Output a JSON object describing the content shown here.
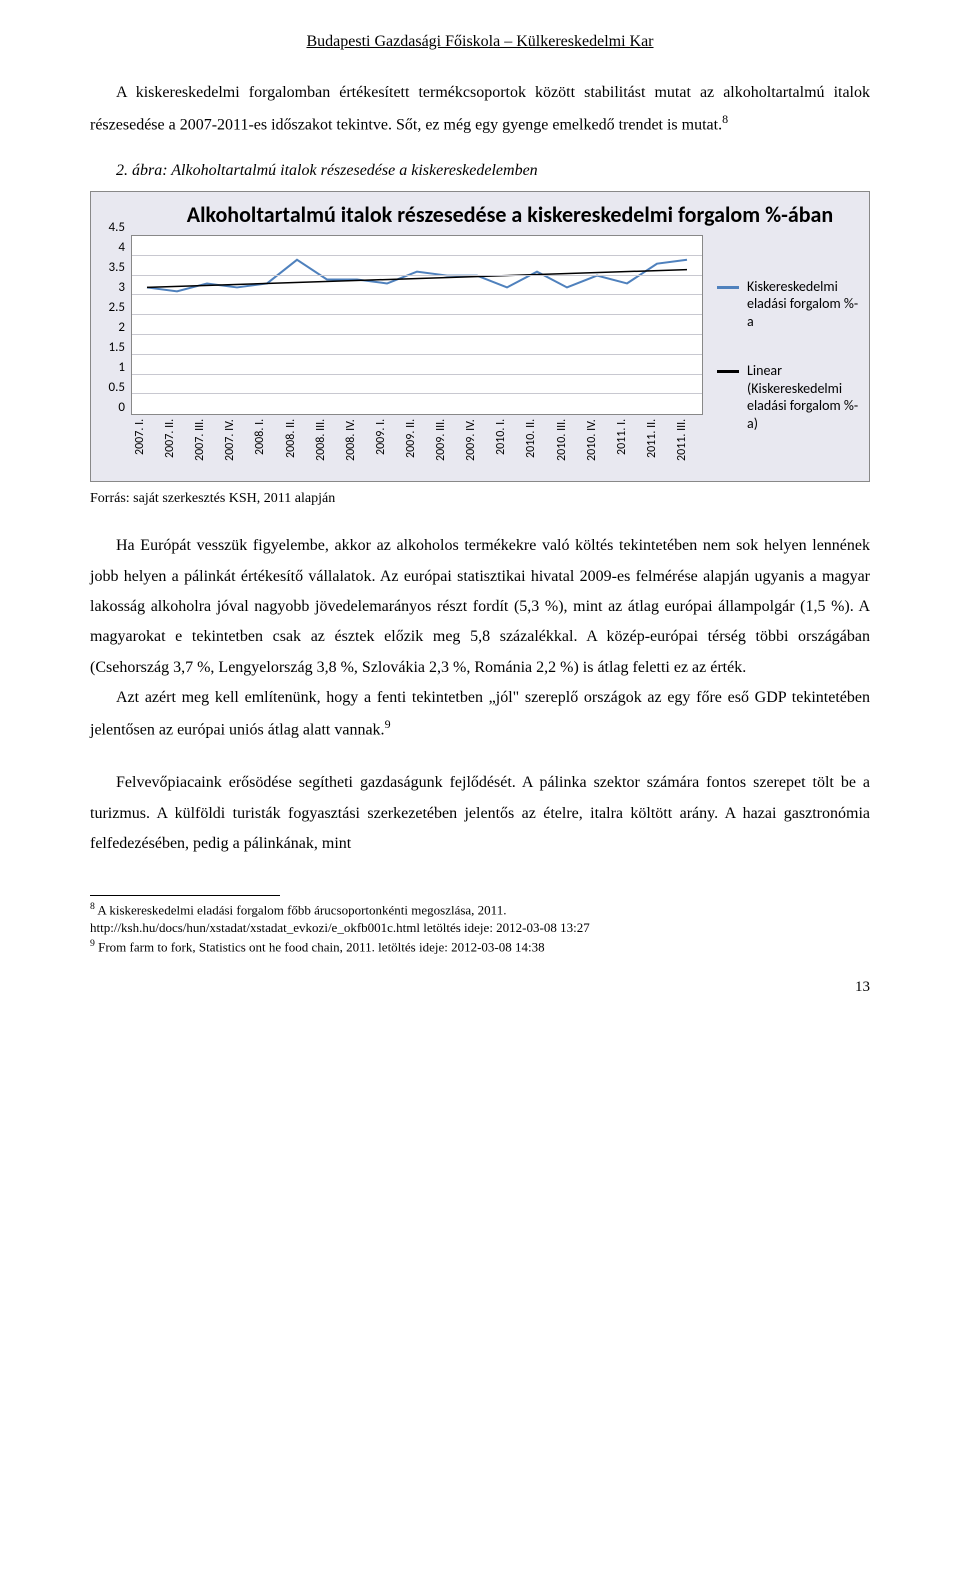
{
  "header": "Budapesti Gazdasági Főiskola – Külkereskedelmi Kar",
  "para1": "A kiskereskedelmi forgalomban értékesített termékcsoportok között stabilitást mutat az alkoholtartalmú italok részesedése a 2007-2011-es időszakot tekintve. Sőt, ez még egy gyenge emelkedő trendet is mutat.",
  "sup1": "8",
  "chart_caption": "2. ábra: Alkoholtartalmú italok részesedése a kiskereskedelemben",
  "chart": {
    "type": "line",
    "title": "Alkoholtartalmú italok részesedése a kiskereskedelmi forgalom %-ában",
    "y_ticks": [
      "0",
      "0.5",
      "1",
      "1.5",
      "2",
      "2.5",
      "3",
      "3.5",
      "4",
      "4.5"
    ],
    "ylim": [
      0,
      4.5
    ],
    "x_labels": [
      "2007. I.",
      "2007. II.",
      "2007. III.",
      "2007. IV.",
      "2008. I.",
      "2008. II.",
      "2008. III.",
      "2008. IV.",
      "2009. I.",
      "2009. II.",
      "2009. III.",
      "2009. IV.",
      "2010. I.",
      "2010. II.",
      "2010. III.",
      "2010. IV.",
      "2011. I.",
      "2011. II.",
      "2011. III."
    ],
    "values": [
      3.2,
      3.1,
      3.3,
      3.2,
      3.3,
      3.9,
      3.4,
      3.4,
      3.3,
      3.6,
      3.5,
      3.5,
      3.2,
      3.6,
      3.2,
      3.5,
      3.3,
      3.8,
      3.9
    ],
    "trend_start": 3.2,
    "trend_end": 3.65,
    "series_color": "#4f81bd",
    "trend_color": "#000000",
    "background_color": "#ffffff",
    "panel_background": "#e8e8f0",
    "grid_color": "#c8c8d0",
    "title_fontsize": 22,
    "label_fontsize": 13,
    "line_width": 2,
    "legend": {
      "series": "Kiskereskedelmi eladási forgalom %-a",
      "trend": "Linear (Kiskereskedelmi eladási forgalom %-a)"
    }
  },
  "source": "Forrás: saját szerkesztés KSH, 2011 alapján",
  "para2": "Ha Európát vesszük figyelembe, akkor az alkoholos termékekre való költés tekintetében nem sok helyen lennének jobb helyen a pálinkát értékesítő vállalatok. Az európai statisztikai hivatal 2009-es felmérése alapján ugyanis a magyar lakosság alkoholra jóval nagyobb jövedelemarányos részt fordít (5,3 %), mint az átlag európai állampolgár (1,5 %). A magyarokat e tekintetben csak az észtek előzik meg 5,8 százalékkal. A közép-európai térség többi országában (Csehország 3,7 %, Lengyelország 3,8 %, Szlovákia 2,3 %, Románia 2,2 %) is átlag feletti ez az érték.",
  "para3": "Azt azért meg kell említenünk, hogy a fenti tekintetben „jól\" szereplő országok az egy főre eső GDP tekintetében jelentősen az európai uniós átlag alatt vannak.",
  "sup2": "9",
  "para4": "Felvevőpiacaink erősödése segítheti gazdaságunk fejlődését. A pálinka szektor számára fontos szerepet tölt be a turizmus. A külföldi turisták fogyasztási szerkezetében jelentős az ételre, italra költött arány. A hazai gasztronómia felfedezésében, pedig a pálinkának, mint",
  "footnote1_a": " A kiskereskedelmi eladási forgalom főbb árucsoportonkénti megoszlása, 2011.",
  "footnote1_b": "http://ksh.hu/docs/hun/xstadat/xstadat_evkozi/e_okfb001c.html  letöltés ideje: 2012-03-08 13:27",
  "footnote2": " From farm to fork, Statistics ont he food chain, 2011.  letöltés ideje: 2012-03-08 14:38",
  "fn_sup1": "8",
  "fn_sup2": "9",
  "page_number": "13"
}
